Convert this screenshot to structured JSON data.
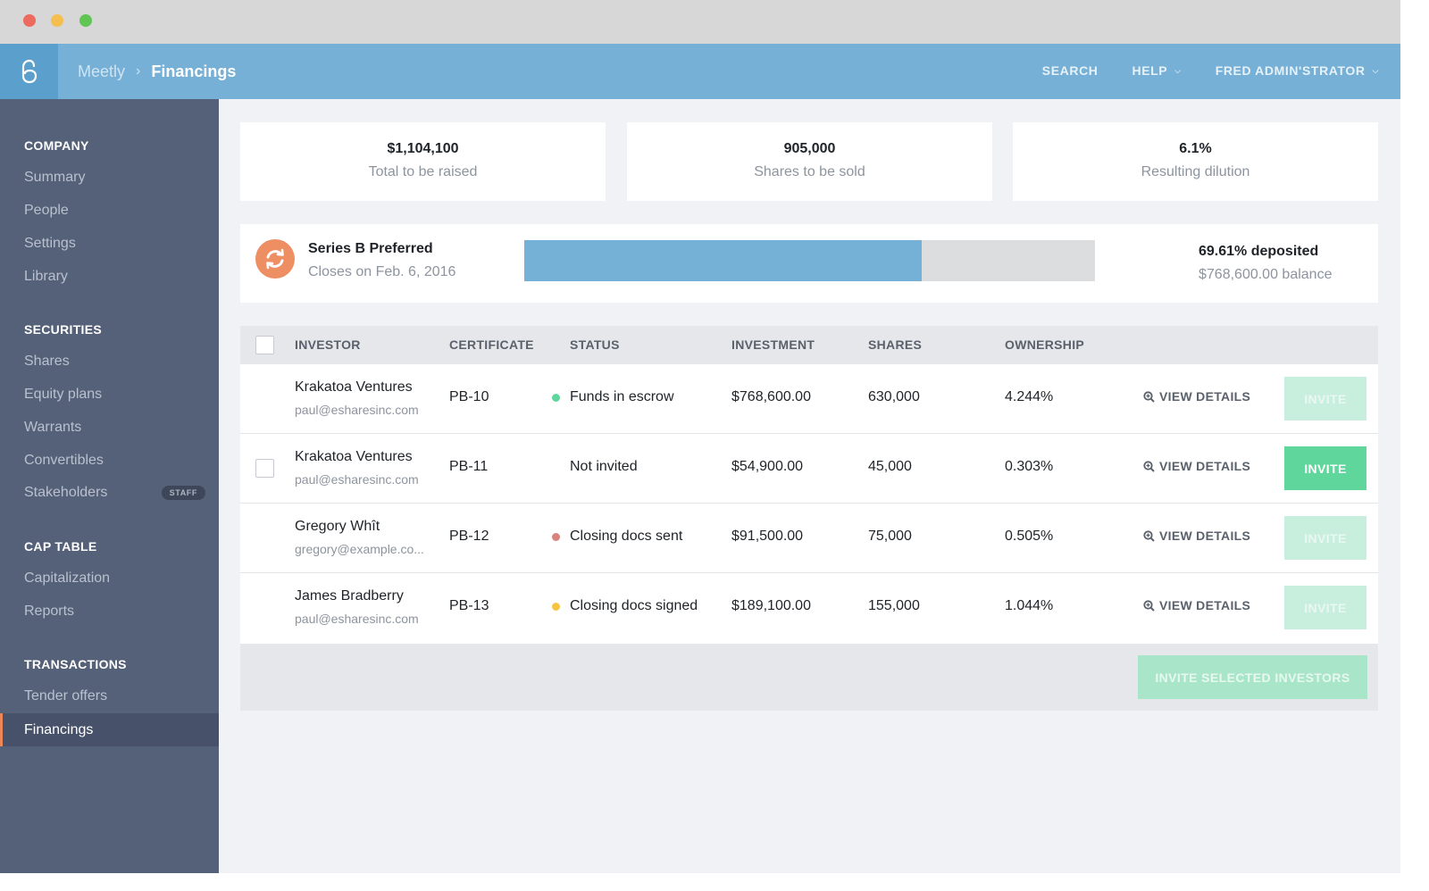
{
  "header": {
    "breadcrumb_parent": "Meetly",
    "breadcrumb_sep": "›",
    "breadcrumb_current": "Financings",
    "nav": {
      "search": "SEARCH",
      "help": "HELP",
      "user": "FRED ADMIN'STRATOR"
    }
  },
  "sidebar": {
    "sections": [
      {
        "title": "COMPANY",
        "items": [
          "Summary",
          "People",
          "Settings",
          "Library"
        ]
      },
      {
        "title": "SECURITIES",
        "items": [
          "Shares",
          "Equity plans",
          "Warrants",
          "Convertibles",
          "Stakeholders"
        ]
      },
      {
        "title": "CAP TABLE",
        "items": [
          "Capitalization",
          "Reports"
        ]
      },
      {
        "title": "TRANSACTIONS",
        "items": [
          "Tender offers",
          "Financings"
        ]
      }
    ],
    "staff_badge": "STAFF",
    "active_item": "Financings"
  },
  "stats": [
    {
      "value": "$1,104,100",
      "label": "Total to be raised"
    },
    {
      "value": "905,000",
      "label": "Shares to be sold"
    },
    {
      "value": "6.1%",
      "label": "Resulting dilution"
    }
  ],
  "series": {
    "name": "Series B Preferred",
    "closes": "Closes on Feb. 6, 2016",
    "progress_percent": 69.61,
    "deposited": "69.61% deposited",
    "balance": "$768,600.00 balance",
    "icon": "refresh-icon"
  },
  "table": {
    "headers": [
      "INVESTOR",
      "CERTIFICATE",
      "STATUS",
      "INVESTMENT",
      "SHARES",
      "OWNERSHIP"
    ],
    "view_details_label": "VIEW DETAILS",
    "invite_label": "INVITE",
    "rows": [
      {
        "name": "Krakatoa Ventures",
        "email": "paul@esharesinc.com",
        "certificate": "PB-10",
        "status": "Funds in escrow",
        "status_color": "#5fd69b",
        "investment": "$768,600.00",
        "shares": "630,000",
        "ownership": "4.244%",
        "has_checkbox": false,
        "invite_enabled": false
      },
      {
        "name": "Krakatoa Ventures",
        "email": "paul@esharesinc.com",
        "certificate": "PB-11",
        "status": "Not invited",
        "status_color": "",
        "investment": "$54,900.00",
        "shares": "45,000",
        "ownership": "0.303%",
        "has_checkbox": true,
        "invite_enabled": true
      },
      {
        "name": "Gregory Whît",
        "email": "gregory@example.co...",
        "certificate": "PB-12",
        "status": "Closing docs sent",
        "status_color": "#d9837d",
        "investment": "$91,500.00",
        "shares": "75,000",
        "ownership": "0.505%",
        "has_checkbox": false,
        "invite_enabled": false
      },
      {
        "name": "James Bradberry",
        "email": "paul@esharesinc.com",
        "certificate": "PB-13",
        "status": "Closing docs signed",
        "status_color": "#f5c542",
        "investment": "$189,100.00",
        "shares": "155,000",
        "ownership": "1.044%",
        "has_checkbox": false,
        "invite_enabled": false
      }
    ],
    "invite_selected_label": "INVITE SELECTED INVESTORS"
  },
  "colors": {
    "header_bg": "#76b0d6",
    "sidebar_bg": "#556178",
    "accent_orange": "#ee8757",
    "invite_green": "#5fd69b",
    "progress_blue": "#75b0d6"
  }
}
